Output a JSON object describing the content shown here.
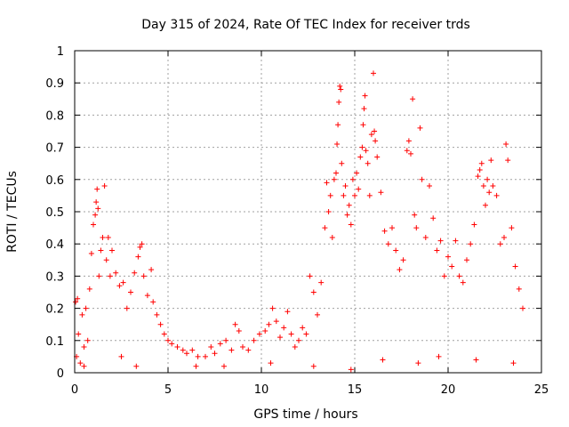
{
  "chart_data": {
    "type": "scatter",
    "title": "Day 315 of 2024, Rate Of TEC Index for receiver trds",
    "xlabel": "GPS time / hours",
    "ylabel": "ROTI / TECUs",
    "xlim": [
      0,
      25
    ],
    "ylim": [
      0,
      1
    ],
    "xticks": [
      0,
      5,
      10,
      15,
      20,
      25
    ],
    "yticks": [
      0,
      0.1,
      0.2,
      0.3,
      0.4,
      0.5,
      0.6,
      0.7,
      0.8,
      0.9,
      1
    ],
    "xtick_labels": [
      "0",
      "5",
      "10",
      "15",
      "20",
      "25"
    ],
    "ytick_labels": [
      "0",
      "0.1",
      "0.2",
      "0.3",
      "0.4",
      "0.5",
      "0.6",
      "0.7",
      "0.8",
      "0.9",
      "1"
    ],
    "grid": true,
    "marker": "+",
    "marker_color": "#ff0000",
    "series": [
      {
        "name": "ROTI",
        "points": [
          [
            0.05,
            0.22
          ],
          [
            0.1,
            0.05
          ],
          [
            0.15,
            0.23
          ],
          [
            0.2,
            0.12
          ],
          [
            0.3,
            0.03
          ],
          [
            0.4,
            0.18
          ],
          [
            0.5,
            0.08
          ],
          [
            0.6,
            0.2
          ],
          [
            0.7,
            0.1
          ],
          [
            0.8,
            0.26
          ],
          [
            0.9,
            0.37
          ],
          [
            1.0,
            0.46
          ],
          [
            1.1,
            0.49
          ],
          [
            1.15,
            0.53
          ],
          [
            1.2,
            0.57
          ],
          [
            1.25,
            0.51
          ],
          [
            1.3,
            0.3
          ],
          [
            1.4,
            0.38
          ],
          [
            1.5,
            0.42
          ],
          [
            1.6,
            0.58
          ],
          [
            1.7,
            0.35
          ],
          [
            1.8,
            0.42
          ],
          [
            1.9,
            0.3
          ],
          [
            2.0,
            0.38
          ],
          [
            2.2,
            0.31
          ],
          [
            2.4,
            0.27
          ],
          [
            2.6,
            0.28
          ],
          [
            2.8,
            0.2
          ],
          [
            3.0,
            0.25
          ],
          [
            3.2,
            0.31
          ],
          [
            3.4,
            0.36
          ],
          [
            3.5,
            0.39
          ],
          [
            3.6,
            0.4
          ],
          [
            3.7,
            0.3
          ],
          [
            3.9,
            0.24
          ],
          [
            4.1,
            0.32
          ],
          [
            4.2,
            0.22
          ],
          [
            4.4,
            0.18
          ],
          [
            4.6,
            0.15
          ],
          [
            4.8,
            0.12
          ],
          [
            5.0,
            0.1
          ],
          [
            5.2,
            0.09
          ],
          [
            5.5,
            0.08
          ],
          [
            5.8,
            0.07
          ],
          [
            6.0,
            0.06
          ],
          [
            6.3,
            0.07
          ],
          [
            6.6,
            0.05
          ],
          [
            7.0,
            0.05
          ],
          [
            7.3,
            0.08
          ],
          [
            7.5,
            0.06
          ],
          [
            7.8,
            0.09
          ],
          [
            8.1,
            0.1
          ],
          [
            8.4,
            0.07
          ],
          [
            8.6,
            0.15
          ],
          [
            8.8,
            0.13
          ],
          [
            9.0,
            0.08
          ],
          [
            9.3,
            0.07
          ],
          [
            9.6,
            0.1
          ],
          [
            9.9,
            0.12
          ],
          [
            10.2,
            0.13
          ],
          [
            10.4,
            0.15
          ],
          [
            10.6,
            0.2
          ],
          [
            10.8,
            0.16
          ],
          [
            11.0,
            0.11
          ],
          [
            11.2,
            0.14
          ],
          [
            11.4,
            0.19
          ],
          [
            11.6,
            0.12
          ],
          [
            11.8,
            0.08
          ],
          [
            12.0,
            0.1
          ],
          [
            12.2,
            0.14
          ],
          [
            12.4,
            0.12
          ],
          [
            12.6,
            0.3
          ],
          [
            12.8,
            0.25
          ],
          [
            13.0,
            0.18
          ],
          [
            13.2,
            0.28
          ],
          [
            13.4,
            0.45
          ],
          [
            13.5,
            0.59
          ],
          [
            13.6,
            0.5
          ],
          [
            13.7,
            0.55
          ],
          [
            13.8,
            0.42
          ],
          [
            13.9,
            0.6
          ],
          [
            14.0,
            0.62
          ],
          [
            14.05,
            0.71
          ],
          [
            14.1,
            0.77
          ],
          [
            14.15,
            0.84
          ],
          [
            14.2,
            0.89
          ],
          [
            14.25,
            0.88
          ],
          [
            14.3,
            0.65
          ],
          [
            14.4,
            0.55
          ],
          [
            14.5,
            0.58
          ],
          [
            14.6,
            0.49
          ],
          [
            14.7,
            0.52
          ],
          [
            14.8,
            0.46
          ],
          [
            14.9,
            0.6
          ],
          [
            15.0,
            0.55
          ],
          [
            15.1,
            0.62
          ],
          [
            15.2,
            0.57
          ],
          [
            15.3,
            0.67
          ],
          [
            15.4,
            0.7
          ],
          [
            15.45,
            0.77
          ],
          [
            15.5,
            0.82
          ],
          [
            15.55,
            0.86
          ],
          [
            15.6,
            0.69
          ],
          [
            15.7,
            0.65
          ],
          [
            15.8,
            0.55
          ],
          [
            15.9,
            0.74
          ],
          [
            16.0,
            0.93
          ],
          [
            16.05,
            0.75
          ],
          [
            16.1,
            0.72
          ],
          [
            16.2,
            0.67
          ],
          [
            16.4,
            0.56
          ],
          [
            16.6,
            0.44
          ],
          [
            16.8,
            0.4
          ],
          [
            17.0,
            0.45
          ],
          [
            17.2,
            0.38
          ],
          [
            17.4,
            0.32
          ],
          [
            17.6,
            0.35
          ],
          [
            17.8,
            0.69
          ],
          [
            17.9,
            0.72
          ],
          [
            18.0,
            0.68
          ],
          [
            18.1,
            0.85
          ],
          [
            18.2,
            0.49
          ],
          [
            18.3,
            0.45
          ],
          [
            18.5,
            0.76
          ],
          [
            18.6,
            0.6
          ],
          [
            18.8,
            0.42
          ],
          [
            19.0,
            0.58
          ],
          [
            19.2,
            0.48
          ],
          [
            19.4,
            0.38
          ],
          [
            19.6,
            0.41
          ],
          [
            19.8,
            0.3
          ],
          [
            20.0,
            0.36
          ],
          [
            20.2,
            0.33
          ],
          [
            20.4,
            0.41
          ],
          [
            20.6,
            0.3
          ],
          [
            20.8,
            0.28
          ],
          [
            21.0,
            0.35
          ],
          [
            21.2,
            0.4
          ],
          [
            21.4,
            0.46
          ],
          [
            21.6,
            0.61
          ],
          [
            21.7,
            0.63
          ],
          [
            21.8,
            0.65
          ],
          [
            21.9,
            0.58
          ],
          [
            22.0,
            0.52
          ],
          [
            22.1,
            0.6
          ],
          [
            22.2,
            0.56
          ],
          [
            22.3,
            0.66
          ],
          [
            22.4,
            0.58
          ],
          [
            22.6,
            0.55
          ],
          [
            22.8,
            0.4
          ],
          [
            23.0,
            0.42
          ],
          [
            23.1,
            0.71
          ],
          [
            23.2,
            0.66
          ],
          [
            23.4,
            0.45
          ],
          [
            23.6,
            0.33
          ],
          [
            23.8,
            0.26
          ],
          [
            24.0,
            0.2
          ],
          [
            0.5,
            0.02
          ],
          [
            2.5,
            0.05
          ],
          [
            3.3,
            0.02
          ],
          [
            6.5,
            0.02
          ],
          [
            8.0,
            0.02
          ],
          [
            10.5,
            0.03
          ],
          [
            12.8,
            0.02
          ],
          [
            14.8,
            0.01
          ],
          [
            16.5,
            0.04
          ],
          [
            18.4,
            0.03
          ],
          [
            19.5,
            0.05
          ],
          [
            21.5,
            0.04
          ],
          [
            23.5,
            0.03
          ]
        ]
      }
    ]
  }
}
